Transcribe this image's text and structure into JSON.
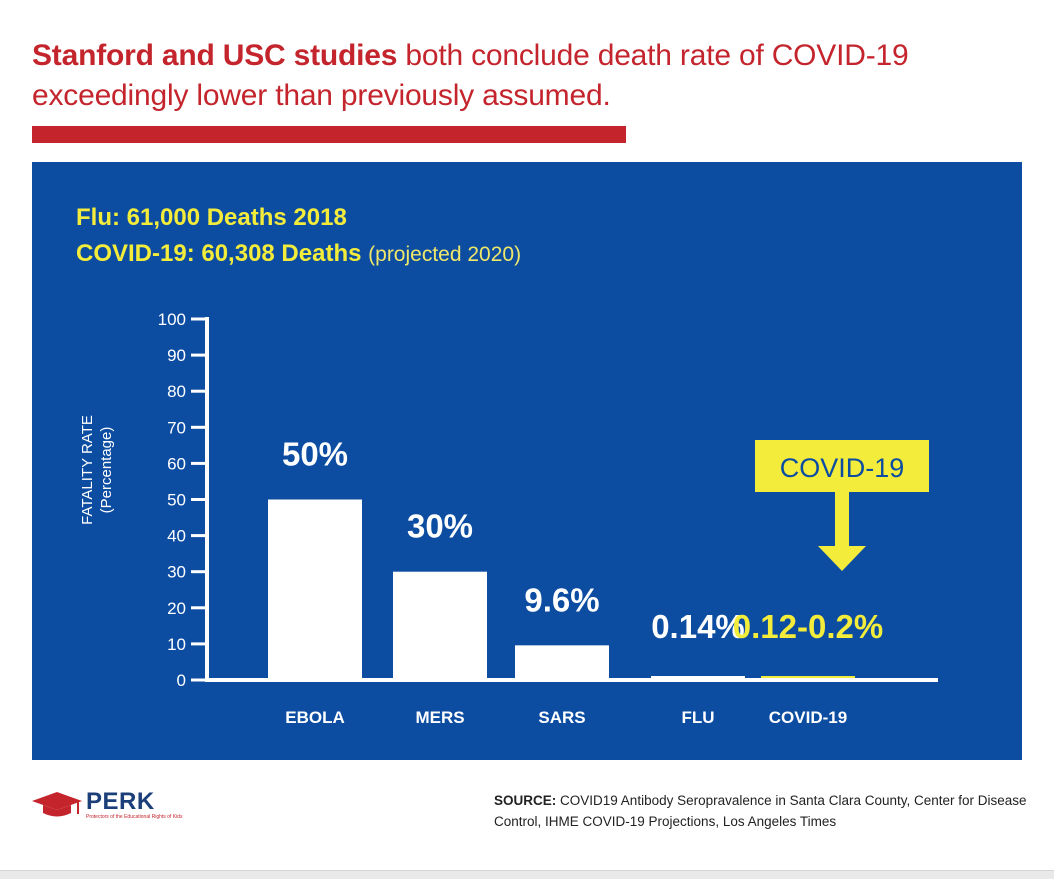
{
  "headline": {
    "bold": "Stanford and USC studies",
    "rest_line1": " both conclude death rate of COVID-19",
    "rest_line2": "exceedingly lower than previously assumed."
  },
  "subheading": {
    "line1": "Flu: 61,000 Deaths 2018",
    "line2_main": "COVID-19: 60,308 Deaths",
    "line2_note": "(projected 2020)"
  },
  "chart_data": {
    "type": "bar",
    "categories": [
      "EBOLA",
      "MERS",
      "SARS",
      "FLU",
      "COVID-19"
    ],
    "values": [
      50,
      30,
      9.6,
      0.14,
      0.2
    ],
    "data_labels": [
      "50%",
      "30%",
      "9.6%",
      "0.14%",
      "0.12-0.2%"
    ],
    "ylabel": "FATALITY RATE",
    "ylabel_sub": "(Percentage)",
    "ylim": [
      0,
      100
    ],
    "yticks": [
      0,
      10,
      20,
      30,
      40,
      50,
      60,
      70,
      80,
      90,
      100
    ],
    "highlight_category": "COVID-19",
    "callout": "COVID-19",
    "grid": false,
    "colors": {
      "background": "#0c4da2",
      "bar": "#ffffff",
      "highlight": "#f4ec3b",
      "axis": "#ffffff"
    }
  },
  "colors": {
    "headline": "#c4252d",
    "rule": "#c4252d",
    "brand": "#1c3f7a"
  },
  "brand": {
    "name": "PERK",
    "tagline": "Protectors of the Educational Rights of Kids",
    "icon": "graduation-cap-icon"
  },
  "source": {
    "label": "SOURCE:",
    "text": "COVID19 Antibody Seropravalence in Santa Clara County, Center for Disease Control, IHME COVID-19 Projections, Los Angeles Times"
  }
}
